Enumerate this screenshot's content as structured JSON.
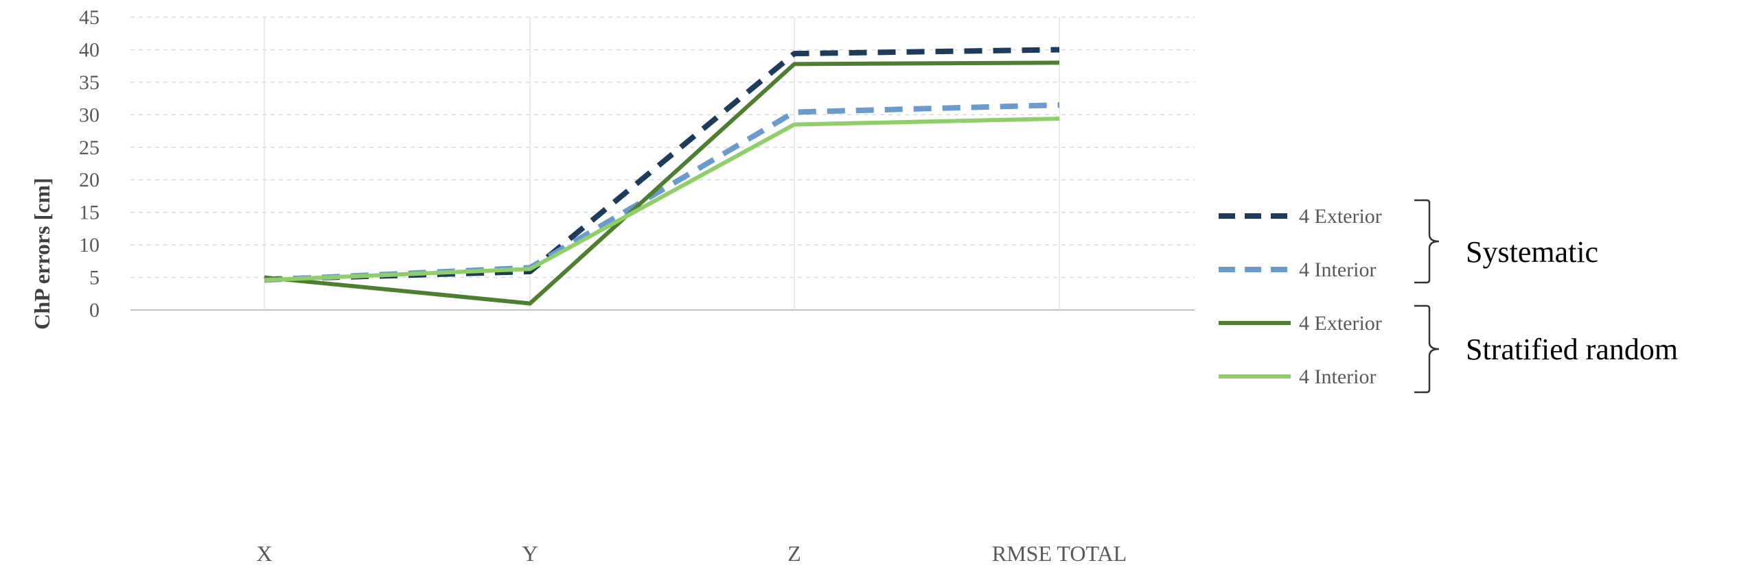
{
  "chart_data": {
    "type": "line",
    "title": "",
    "xlabel": "",
    "ylabel": "ChP errors [cm]",
    "categories": [
      "X",
      "Y",
      "Z",
      "RMSE TOTAL"
    ],
    "ylim": [
      0,
      45
    ],
    "yticks": [
      0,
      5,
      10,
      15,
      20,
      25,
      30,
      35,
      40,
      45
    ],
    "grid": true,
    "legend_position": "right",
    "series": [
      {
        "name": "4 Exterior",
        "group": "Systematic",
        "values": [
          4.7,
          5.9,
          39.4,
          40.0
        ],
        "color": "#1f3b5c",
        "style": "dashed"
      },
      {
        "name": "4 Interior",
        "group": "Systematic",
        "values": [
          4.6,
          6.5,
          30.4,
          31.5
        ],
        "color": "#6a9bcc",
        "style": "dashed"
      },
      {
        "name": "4 Exterior",
        "group": "Stratified random",
        "values": [
          5.0,
          1.0,
          37.8,
          38.0
        ],
        "color": "#4e7e2f",
        "style": "solid"
      },
      {
        "name": "4 Interior",
        "group": "Stratified random",
        "values": [
          4.6,
          6.3,
          28.5,
          29.4
        ],
        "color": "#8fce6a",
        "style": "solid"
      }
    ],
    "legend_groups": [
      "Systematic",
      "Stratified random"
    ]
  }
}
